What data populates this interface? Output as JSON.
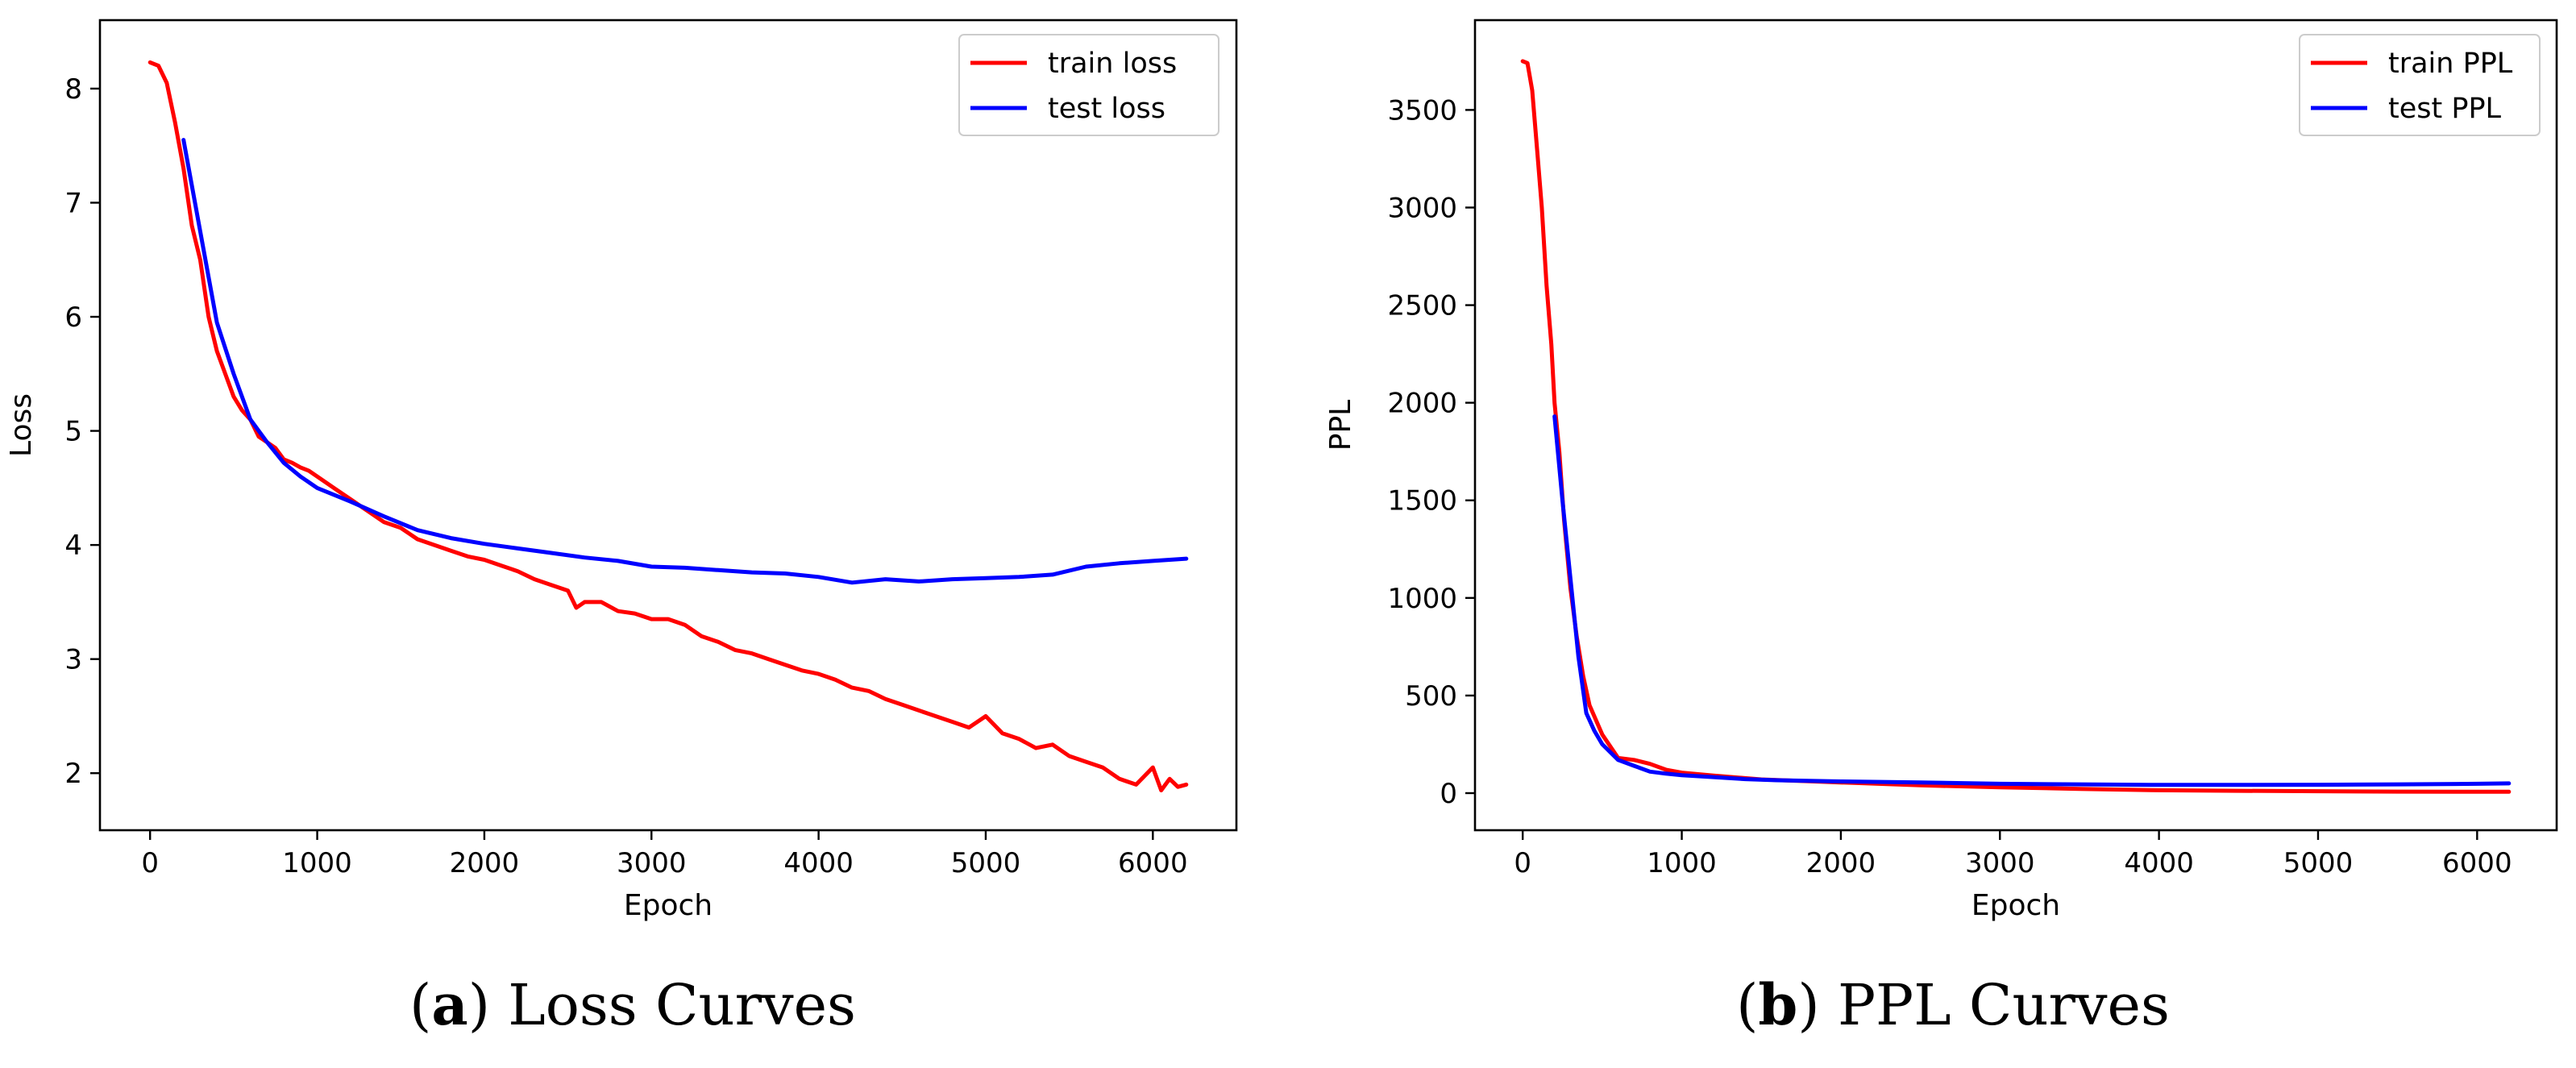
{
  "chart_data": [
    {
      "type": "line",
      "caption_letter": "a",
      "caption_text": "Loss Curves",
      "xlabel": "Epoch",
      "ylabel": "Loss",
      "xlim": [
        -300,
        6500
      ],
      "ylim": [
        1.5,
        8.6
      ],
      "xticks": [
        0,
        1000,
        2000,
        3000,
        4000,
        5000,
        6000
      ],
      "yticks": [
        2,
        3,
        4,
        5,
        6,
        7,
        8
      ],
      "legend_position": "top-right",
      "series": [
        {
          "name": "train loss",
          "color": "#ff0000",
          "x": [
            0,
            50,
            100,
            150,
            200,
            250,
            300,
            350,
            400,
            450,
            500,
            550,
            600,
            650,
            700,
            750,
            800,
            850,
            900,
            950,
            1000,
            1100,
            1200,
            1300,
            1400,
            1500,
            1600,
            1700,
            1800,
            1900,
            2000,
            2100,
            2200,
            2300,
            2400,
            2500,
            2550,
            2600,
            2700,
            2800,
            2900,
            3000,
            3100,
            3200,
            3300,
            3400,
            3500,
            3600,
            3700,
            3800,
            3900,
            4000,
            4100,
            4200,
            4300,
            4400,
            4500,
            4600,
            4700,
            4800,
            4900,
            5000,
            5100,
            5200,
            5300,
            5400,
            5500,
            5600,
            5700,
            5800,
            5900,
            6000,
            6050,
            6100,
            6150,
            6200
          ],
          "y": [
            8.23,
            8.2,
            8.05,
            7.7,
            7.3,
            6.8,
            6.5,
            6.0,
            5.7,
            5.5,
            5.3,
            5.18,
            5.1,
            4.95,
            4.9,
            4.85,
            4.75,
            4.72,
            4.68,
            4.65,
            4.6,
            4.5,
            4.4,
            4.3,
            4.2,
            4.15,
            4.05,
            4.0,
            3.95,
            3.9,
            3.87,
            3.82,
            3.77,
            3.7,
            3.65,
            3.6,
            3.45,
            3.5,
            3.5,
            3.42,
            3.4,
            3.35,
            3.35,
            3.3,
            3.2,
            3.15,
            3.08,
            3.05,
            3.0,
            2.95,
            2.9,
            2.87,
            2.82,
            2.75,
            2.72,
            2.65,
            2.6,
            2.55,
            2.5,
            2.45,
            2.4,
            2.5,
            2.35,
            2.3,
            2.22,
            2.25,
            2.15,
            2.1,
            2.05,
            1.95,
            1.9,
            2.05,
            1.85,
            1.95,
            1.88,
            1.9
          ]
        },
        {
          "name": "test loss",
          "color": "#0000ff",
          "x": [
            200,
            300,
            400,
            500,
            600,
            700,
            800,
            900,
            1000,
            1200,
            1400,
            1600,
            1800,
            2000,
            2200,
            2400,
            2600,
            2800,
            3000,
            3200,
            3400,
            3600,
            3800,
            4000,
            4200,
            4400,
            4600,
            4800,
            5000,
            5200,
            5400,
            5600,
            5800,
            6000,
            6200
          ],
          "y": [
            7.55,
            6.75,
            5.95,
            5.5,
            5.1,
            4.9,
            4.72,
            4.6,
            4.5,
            4.38,
            4.25,
            4.13,
            4.06,
            4.01,
            3.97,
            3.93,
            3.89,
            3.86,
            3.81,
            3.8,
            3.78,
            3.76,
            3.75,
            3.72,
            3.67,
            3.7,
            3.68,
            3.7,
            3.71,
            3.72,
            3.74,
            3.81,
            3.84,
            3.86,
            3.88
          ]
        }
      ]
    },
    {
      "type": "line",
      "caption_letter": "b",
      "caption_text": "PPL Curves",
      "xlabel": "Epoch",
      "ylabel": "PPL",
      "xlim": [
        -300,
        6500
      ],
      "ylim": [
        -190,
        3960
      ],
      "xticks": [
        0,
        1000,
        2000,
        3000,
        4000,
        5000,
        6000
      ],
      "yticks": [
        0,
        500,
        1000,
        1500,
        2000,
        2500,
        3000,
        3500
      ],
      "legend_position": "top-right",
      "series": [
        {
          "name": "train PPL",
          "color": "#ff0000",
          "x": [
            0,
            30,
            60,
            90,
            120,
            150,
            180,
            200,
            230,
            260,
            300,
            340,
            380,
            420,
            500,
            600,
            700,
            800,
            900,
            1000,
            1200,
            1500,
            2000,
            2500,
            3000,
            3500,
            4000,
            4500,
            5000,
            5500,
            6000,
            6200
          ],
          "y": [
            3750,
            3740,
            3600,
            3300,
            3000,
            2600,
            2300,
            2000,
            1750,
            1400,
            1050,
            800,
            600,
            450,
            300,
            180,
            170,
            150,
            120,
            105,
            90,
            70,
            55,
            40,
            30,
            22,
            15,
            12,
            10,
            8,
            7,
            7
          ]
        },
        {
          "name": "test PPL",
          "color": "#0000ff",
          "x": [
            200,
            250,
            300,
            350,
            400,
            450,
            500,
            600,
            700,
            800,
            900,
            1000,
            1200,
            1400,
            1600,
            2000,
            2500,
            3000,
            3500,
            4000,
            4500,
            5000,
            5500,
            6000,
            6200
          ],
          "y": [
            1930,
            1500,
            1100,
            700,
            410,
            320,
            250,
            170,
            140,
            110,
            100,
            92,
            82,
            72,
            66,
            60,
            55,
            48,
            45,
            42,
            42,
            43,
            45,
            48,
            50
          ]
        }
      ]
    }
  ]
}
